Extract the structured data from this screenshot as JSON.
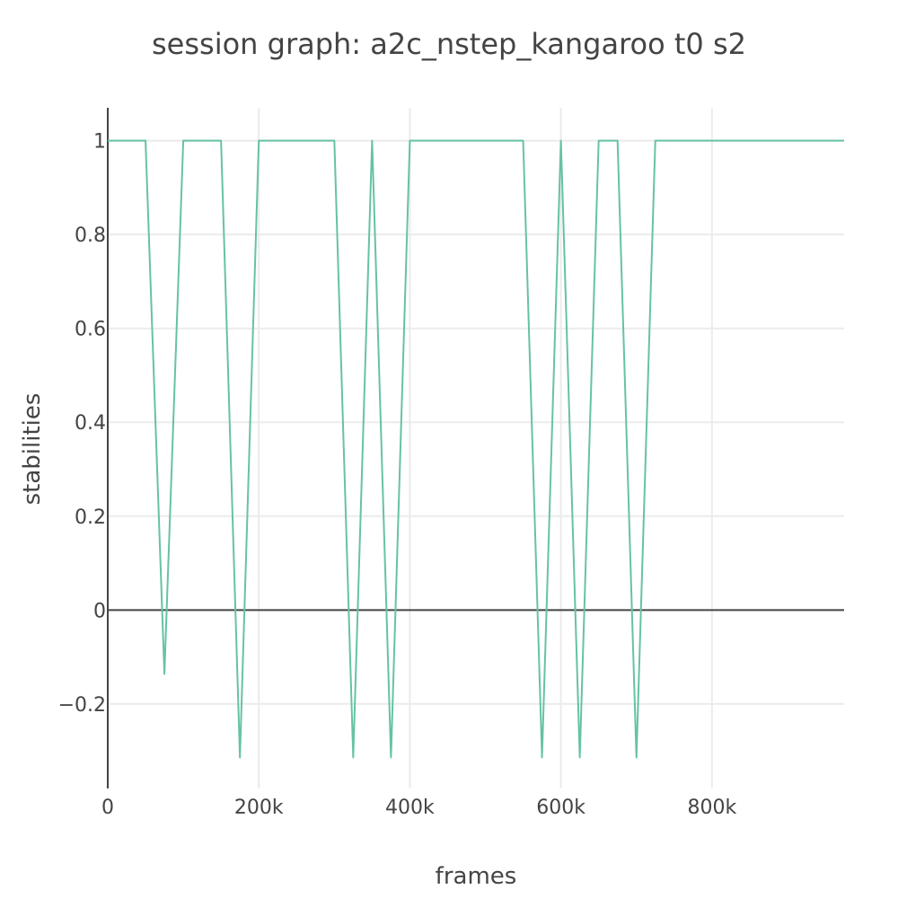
{
  "chart_data": {
    "type": "line",
    "title": "session graph: a2c_nstep_kangaroo t0 s2",
    "xlabel": "frames",
    "ylabel": "stabilities",
    "xlim": [
      0,
      975000
    ],
    "ylim": [
      -0.38,
      1.07
    ],
    "x_ticks": [
      {
        "value": 0,
        "label": "0"
      },
      {
        "value": 200000,
        "label": "200k"
      },
      {
        "value": 400000,
        "label": "400k"
      },
      {
        "value": 600000,
        "label": "600k"
      },
      {
        "value": 800000,
        "label": "800k"
      }
    ],
    "y_ticks": [
      {
        "value": -0.2,
        "label": "−0.2"
      },
      {
        "value": 0,
        "label": "0"
      },
      {
        "value": 0.2,
        "label": "0.2"
      },
      {
        "value": 0.4,
        "label": "0.4"
      },
      {
        "value": 0.6,
        "label": "0.6"
      },
      {
        "value": 0.8,
        "label": "0.8"
      },
      {
        "value": 1,
        "label": "1"
      }
    ],
    "grid": true,
    "legend": "none",
    "series": [
      {
        "color": "#66c2a5",
        "x": [
          0,
          25000,
          50000,
          75000,
          100000,
          125000,
          150000,
          175000,
          200000,
          225000,
          250000,
          275000,
          300000,
          325000,
          350000,
          375000,
          400000,
          425000,
          450000,
          475000,
          500000,
          525000,
          550000,
          575000,
          600000,
          625000,
          650000,
          675000,
          700000,
          725000,
          750000,
          775000,
          800000,
          825000,
          850000,
          875000,
          900000,
          925000,
          950000,
          975000
        ],
        "y": [
          1,
          1,
          1,
          -0.136,
          1,
          1,
          1,
          -0.314,
          1,
          1,
          1,
          1,
          1,
          -0.314,
          1,
          -0.314,
          1,
          1,
          1,
          1,
          1,
          1,
          1,
          -0.314,
          1,
          -0.314,
          1,
          1,
          -0.314,
          1,
          1,
          1,
          1,
          1,
          1,
          1,
          1,
          1,
          1,
          1
        ]
      }
    ]
  }
}
